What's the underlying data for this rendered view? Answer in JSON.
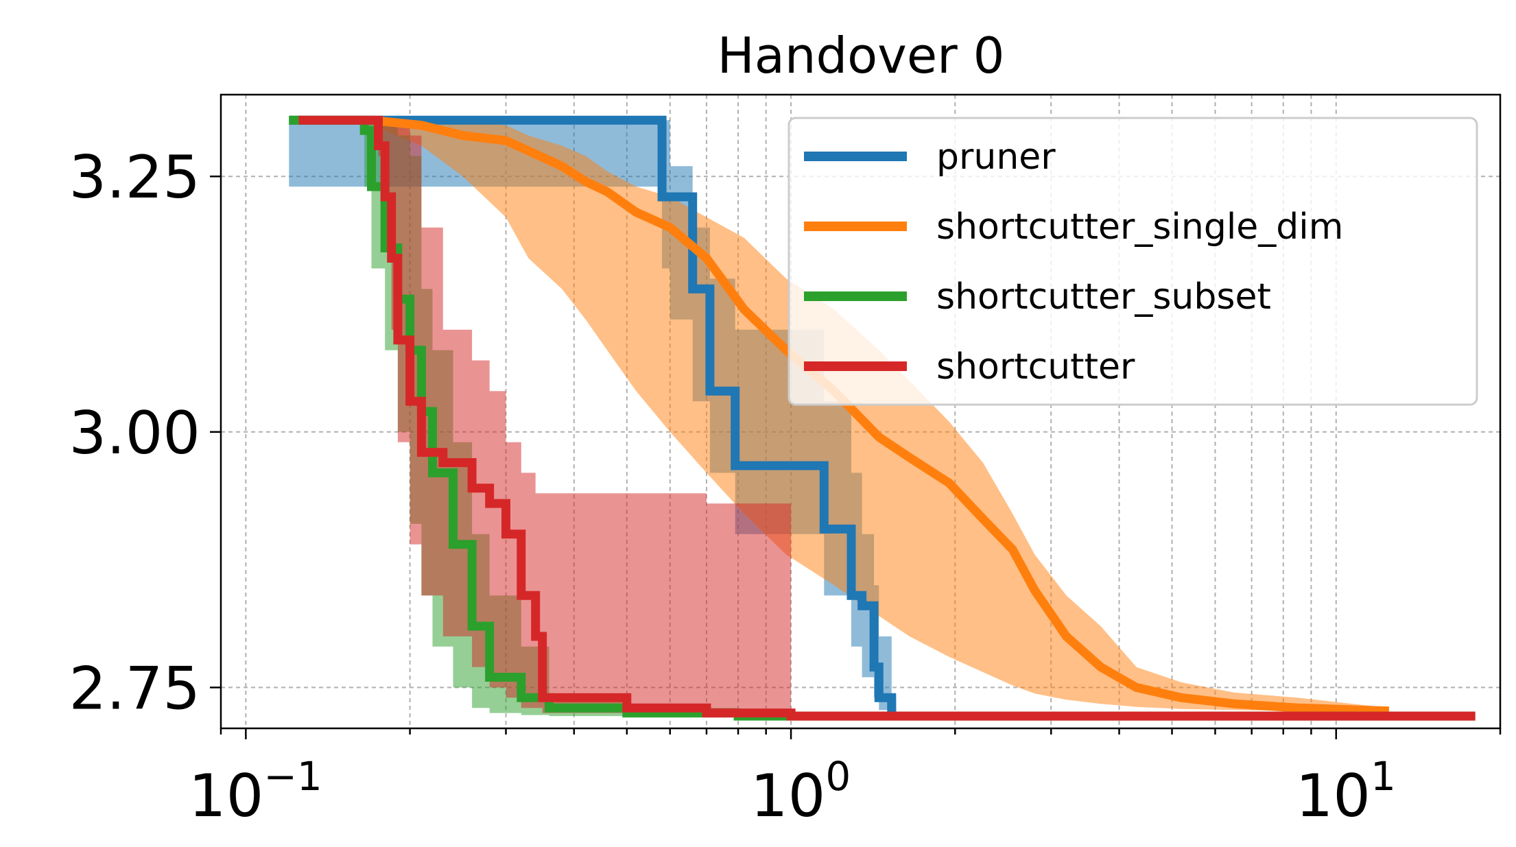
{
  "chart_data": {
    "type": "line",
    "title": "Handover 0",
    "xlabel": "",
    "ylabel": "",
    "xscale": "log",
    "xlim": [
      0.09,
      20
    ],
    "ylim": [
      2.71,
      3.33
    ],
    "x_ticks": [
      {
        "base": "10",
        "exp": "−1",
        "value": 0.1
      },
      {
        "base": "10",
        "exp": "0",
        "value": 1
      },
      {
        "base": "10",
        "exp": "1",
        "value": 10
      }
    ],
    "y_ticks": [
      {
        "label": "3.25",
        "value": 3.25
      },
      {
        "label": "3.00",
        "value": 3.0
      },
      {
        "label": "2.75",
        "value": 2.75
      }
    ],
    "grid": true,
    "legend_position": "top-right",
    "series": [
      {
        "name": "pruner",
        "color": "#1f77b4",
        "x": [
          0.12,
          0.58,
          0.58,
          0.6,
          0.6,
          0.66,
          0.66,
          0.71,
          0.71,
          0.79,
          0.79,
          1.15,
          1.15,
          1.29,
          1.29,
          1.35,
          1.35,
          1.42,
          1.42,
          1.45,
          1.45,
          1.53,
          1.53,
          1.56
        ],
        "y": [
          3.305,
          3.305,
          3.23,
          3.23,
          3.23,
          3.23,
          3.14,
          3.14,
          3.04,
          3.04,
          2.967,
          2.967,
          2.905,
          2.905,
          2.84,
          2.84,
          2.83,
          2.83,
          2.77,
          2.77,
          2.74,
          2.74,
          2.725,
          2.725
        ],
        "band_low": [
          3.24,
          3.24,
          3.16,
          3.16,
          3.11,
          3.11,
          3.03,
          3.03,
          2.96,
          2.96,
          2.9,
          2.9,
          2.84,
          2.84,
          2.79,
          2.79,
          2.76,
          2.76,
          2.74,
          2.74,
          2.728,
          2.728,
          2.725,
          2.725
        ],
        "band_high": [
          3.305,
          3.305,
          3.305,
          3.305,
          3.26,
          3.26,
          3.2,
          3.2,
          3.15,
          3.15,
          3.1,
          3.1,
          3.03,
          3.03,
          2.96,
          2.96,
          2.9,
          2.9,
          2.85,
          2.85,
          2.8,
          2.8,
          2.74,
          2.74
        ]
      },
      {
        "name": "shortcutter_single_dim",
        "color": "#ff7f0e",
        "x": [
          0.17,
          0.21,
          0.25,
          0.3,
          0.33,
          0.38,
          0.42,
          0.46,
          0.52,
          0.6,
          0.7,
          0.82,
          0.98,
          1.2,
          1.45,
          1.65,
          1.95,
          2.25,
          2.55,
          2.8,
          3.2,
          3.7,
          4.3,
          5.2,
          6.5,
          8.5,
          12.5
        ],
        "y": [
          3.305,
          3.3,
          3.29,
          3.285,
          3.275,
          3.26,
          3.245,
          3.235,
          3.215,
          3.2,
          3.17,
          3.12,
          3.08,
          3.04,
          2.995,
          2.975,
          2.95,
          2.915,
          2.885,
          2.845,
          2.8,
          2.77,
          2.75,
          2.74,
          2.734,
          2.73,
          2.727
        ],
        "band_low": [
          3.3,
          3.28,
          3.25,
          3.21,
          3.17,
          3.14,
          3.11,
          3.08,
          3.04,
          3.0,
          2.96,
          2.92,
          2.88,
          2.85,
          2.82,
          2.8,
          2.78,
          2.765,
          2.752,
          2.744,
          2.738,
          2.734,
          2.731,
          2.729,
          2.728,
          2.727,
          2.726
        ],
        "band_high": [
          3.305,
          3.305,
          3.305,
          3.3,
          3.29,
          3.28,
          3.27,
          3.255,
          3.24,
          3.23,
          3.21,
          3.19,
          3.15,
          3.12,
          3.08,
          3.05,
          3.01,
          2.97,
          2.92,
          2.88,
          2.84,
          2.81,
          2.77,
          2.755,
          2.745,
          2.74,
          2.73
        ]
      },
      {
        "name": "shortcutter_subset",
        "color": "#2ca02c",
        "x": [
          0.12,
          0.165,
          0.165,
          0.17,
          0.17,
          0.18,
          0.18,
          0.19,
          0.19,
          0.2,
          0.2,
          0.21,
          0.21,
          0.22,
          0.22,
          0.24,
          0.24,
          0.26,
          0.26,
          0.28,
          0.28,
          0.32,
          0.32,
          0.36,
          0.36,
          0.5,
          0.5,
          0.8,
          0.8,
          18
        ],
        "y": [
          3.305,
          3.305,
          3.295,
          3.295,
          3.24,
          3.24,
          3.18,
          3.18,
          3.13,
          3.13,
          3.08,
          3.08,
          3.02,
          3.02,
          2.96,
          2.96,
          2.89,
          2.89,
          2.81,
          2.81,
          2.76,
          2.76,
          2.74,
          2.74,
          2.73,
          2.73,
          2.725,
          2.725,
          2.722,
          2.722
        ],
        "band_low": [
          3.305,
          3.305,
          3.24,
          3.24,
          3.16,
          3.16,
          3.08,
          3.08,
          3.0,
          3.0,
          2.91,
          2.91,
          2.84,
          2.84,
          2.79,
          2.79,
          2.75,
          2.75,
          2.73,
          2.73,
          2.725,
          2.725,
          2.723,
          2.723,
          2.722,
          2.722,
          2.722,
          2.722,
          2.722,
          2.722
        ],
        "band_high": [
          3.305,
          3.305,
          3.305,
          3.305,
          3.305,
          3.305,
          3.305,
          3.305,
          3.29,
          3.29,
          3.27,
          3.27,
          3.14,
          3.14,
          3.08,
          3.08,
          2.99,
          2.99,
          2.9,
          2.9,
          2.84,
          2.84,
          2.79,
          2.79,
          2.74,
          2.74,
          2.73,
          2.73,
          2.725,
          2.725
        ]
      },
      {
        "name": "shortcutter",
        "color": "#d62728",
        "x": [
          0.125,
          0.175,
          0.175,
          0.18,
          0.18,
          0.185,
          0.185,
          0.19,
          0.19,
          0.2,
          0.2,
          0.21,
          0.21,
          0.23,
          0.23,
          0.26,
          0.26,
          0.28,
          0.28,
          0.3,
          0.3,
          0.32,
          0.32,
          0.34,
          0.34,
          0.35,
          0.35,
          0.5,
          0.5,
          0.7,
          0.7,
          1.0,
          1.0,
          18
        ],
        "y": [
          3.305,
          3.305,
          3.28,
          3.28,
          3.23,
          3.23,
          3.17,
          3.17,
          3.09,
          3.09,
          3.03,
          3.03,
          2.98,
          2.98,
          2.97,
          2.97,
          2.945,
          2.945,
          2.93,
          2.93,
          2.9,
          2.9,
          2.84,
          2.84,
          2.8,
          2.8,
          2.74,
          2.74,
          2.73,
          2.73,
          2.725,
          2.725,
          2.722,
          2.722
        ],
        "band_low": [
          3.305,
          3.305,
          3.27,
          3.27,
          3.2,
          3.2,
          3.1,
          3.1,
          2.99,
          2.99,
          2.89,
          2.89,
          2.84,
          2.84,
          2.8,
          2.8,
          2.77,
          2.77,
          2.75,
          2.75,
          2.74,
          2.74,
          2.73,
          2.73,
          2.73,
          2.73,
          2.725,
          2.725,
          2.723,
          2.723,
          2.722,
          2.722,
          2.722,
          2.722
        ],
        "band_high": [
          3.305,
          3.305,
          3.305,
          3.305,
          3.305,
          3.305,
          3.305,
          3.305,
          3.305,
          3.305,
          3.29,
          3.29,
          3.2,
          3.2,
          3.1,
          3.1,
          3.07,
          3.07,
          3.04,
          3.04,
          2.99,
          2.99,
          2.96,
          2.96,
          2.94,
          2.94,
          2.94,
          2.94,
          2.94,
          2.94,
          2.93,
          2.93,
          2.725,
          2.725
        ]
      }
    ]
  }
}
